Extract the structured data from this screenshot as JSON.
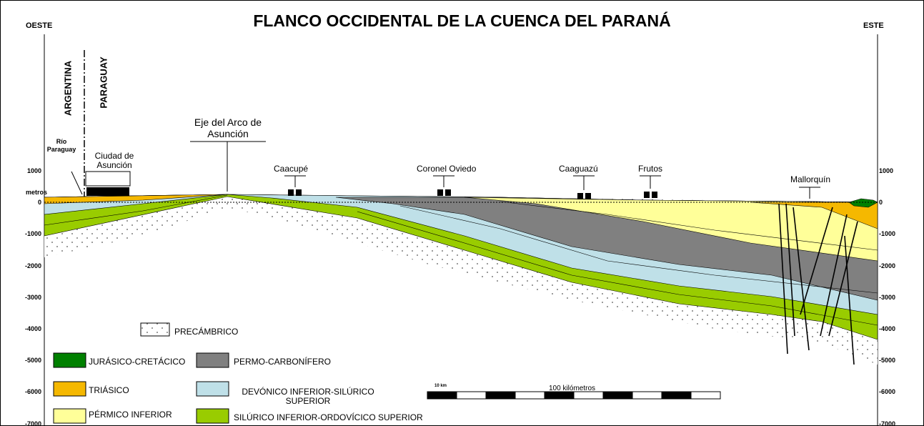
{
  "header": {
    "title": "FLANCO OCCIDENTAL DE LA CUENCA DEL PARANÁ",
    "west": "OESTE",
    "east": "ESTE"
  },
  "axis": {
    "unit": "metros",
    "ticks": [
      "1000",
      "0",
      "-1000",
      "-2000",
      "-3000",
      "-4000",
      "-5000",
      "-6000",
      "-7000"
    ]
  },
  "countries": {
    "left": "ARGENTINA",
    "right": "PARAGUAY"
  },
  "places": {
    "river": "Río Paraguay",
    "city": "Ciudad de Asunción",
    "arch": "Eje del Arco de Asunción",
    "towns": [
      "Caacupé",
      "Coronel Oviedo",
      "Caaguazú",
      "Frutos",
      "Mallorquín"
    ]
  },
  "legend": {
    "precambrian": "PRECÁMBRICO",
    "jurassic": "JURÁSICO-CRETÁCICO",
    "permo": "PERMO-CARBONÍFERO",
    "triassic": "TRIÁSICO",
    "devonian": "DEVÓNICO INFERIOR-SILÚRICO SUPERIOR",
    "permian": "PÉRMICO INFERIOR",
    "silurian": "SILÚRICO INFERIOR-ORDOVÍCICO SUPERIOR"
  },
  "scale": {
    "start": "10 km",
    "label": "100 kilómetros"
  }
}
